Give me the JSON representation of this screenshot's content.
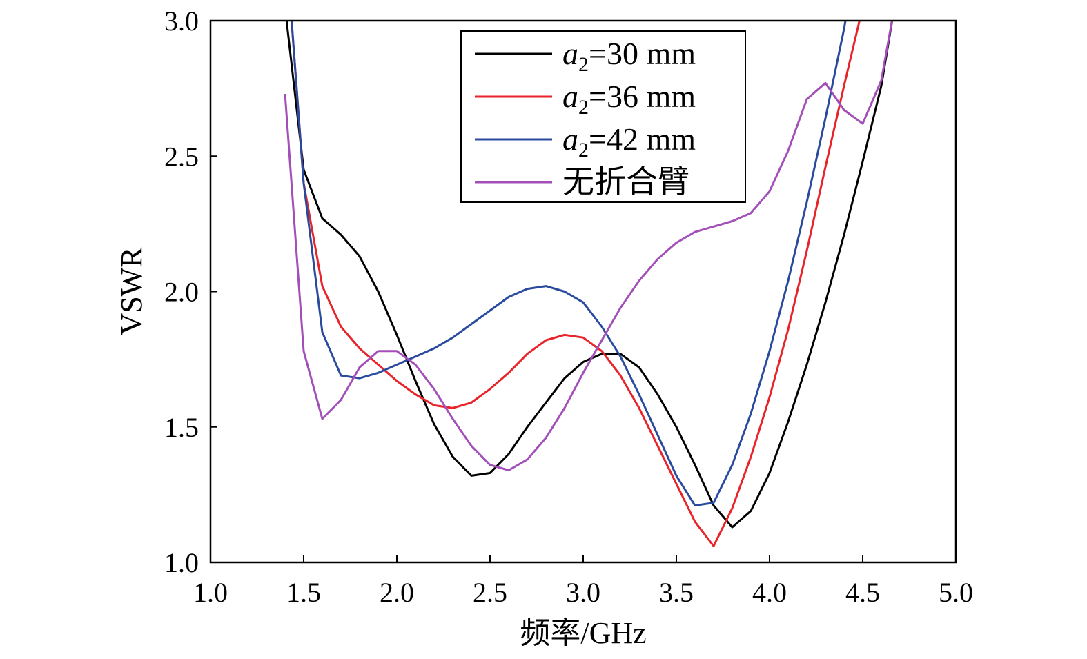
{
  "chart_data": {
    "type": "line",
    "title": "",
    "xlabel": "频率/GHz",
    "ylabel": "VSWR",
    "xlim": [
      1.0,
      5.0
    ],
    "ylim": [
      1.0,
      3.0
    ],
    "x_ticks": [
      1.0,
      1.5,
      2.0,
      2.5,
      3.0,
      3.5,
      4.0,
      4.5,
      5.0
    ],
    "y_ticks": [
      1.0,
      1.5,
      2.0,
      2.5,
      3.0
    ],
    "x_tick_labels": [
      "1.0",
      "1.5",
      "2.0",
      "2.5",
      "3.0",
      "3.5",
      "4.0",
      "4.5",
      "5.0"
    ],
    "y_tick_labels": [
      "1.0",
      "1.5",
      "2.0",
      "2.5",
      "3.0"
    ],
    "grid": false,
    "legend_position": "top-right",
    "series": [
      {
        "name": "a2=30 mm",
        "legend_var": "a",
        "legend_sub": "2",
        "legend_rest": "=30 mm",
        "color": "#000000",
        "points": [
          [
            1.4,
            3.05
          ],
          [
            1.5,
            2.45
          ],
          [
            1.6,
            2.27
          ],
          [
            1.7,
            2.21
          ],
          [
            1.8,
            2.13
          ],
          [
            1.9,
            2.0
          ],
          [
            2.0,
            1.84
          ],
          [
            2.1,
            1.67
          ],
          [
            2.2,
            1.51
          ],
          [
            2.3,
            1.39
          ],
          [
            2.4,
            1.32
          ],
          [
            2.5,
            1.33
          ],
          [
            2.6,
            1.4
          ],
          [
            2.7,
            1.5
          ],
          [
            2.8,
            1.59
          ],
          [
            2.9,
            1.68
          ],
          [
            3.0,
            1.74
          ],
          [
            3.1,
            1.77
          ],
          [
            3.2,
            1.77
          ],
          [
            3.3,
            1.72
          ],
          [
            3.4,
            1.62
          ],
          [
            3.5,
            1.5
          ],
          [
            3.6,
            1.36
          ],
          [
            3.7,
            1.21
          ],
          [
            3.8,
            1.13
          ],
          [
            3.9,
            1.19
          ],
          [
            4.0,
            1.33
          ],
          [
            4.1,
            1.52
          ],
          [
            4.2,
            1.73
          ],
          [
            4.3,
            1.96
          ],
          [
            4.4,
            2.21
          ],
          [
            4.5,
            2.48
          ],
          [
            4.6,
            2.76
          ],
          [
            4.67,
            3.05
          ]
        ]
      },
      {
        "name": "a2=36 mm",
        "legend_var": "a",
        "legend_sub": "2",
        "legend_rest": "=36 mm",
        "color": "#e8232a",
        "points": [
          [
            1.43,
            3.05
          ],
          [
            1.5,
            2.4
          ],
          [
            1.6,
            2.02
          ],
          [
            1.7,
            1.87
          ],
          [
            1.8,
            1.79
          ],
          [
            1.9,
            1.73
          ],
          [
            2.0,
            1.67
          ],
          [
            2.1,
            1.62
          ],
          [
            2.2,
            1.58
          ],
          [
            2.3,
            1.57
          ],
          [
            2.4,
            1.59
          ],
          [
            2.5,
            1.64
          ],
          [
            2.6,
            1.7
          ],
          [
            2.7,
            1.77
          ],
          [
            2.8,
            1.82
          ],
          [
            2.9,
            1.84
          ],
          [
            3.0,
            1.83
          ],
          [
            3.1,
            1.78
          ],
          [
            3.2,
            1.69
          ],
          [
            3.3,
            1.57
          ],
          [
            3.4,
            1.43
          ],
          [
            3.5,
            1.29
          ],
          [
            3.6,
            1.15
          ],
          [
            3.7,
            1.06
          ],
          [
            3.8,
            1.2
          ],
          [
            3.9,
            1.39
          ],
          [
            4.0,
            1.61
          ],
          [
            4.1,
            1.86
          ],
          [
            4.2,
            2.15
          ],
          [
            4.3,
            2.46
          ],
          [
            4.4,
            2.76
          ],
          [
            4.5,
            3.05
          ]
        ]
      },
      {
        "name": "a2=42 mm",
        "legend_var": "a",
        "legend_sub": "2",
        "legend_rest": "=42 mm",
        "color": "#2a4a9e",
        "points": [
          [
            1.43,
            3.05
          ],
          [
            1.5,
            2.4
          ],
          [
            1.6,
            1.85
          ],
          [
            1.7,
            1.69
          ],
          [
            1.8,
            1.68
          ],
          [
            1.9,
            1.7
          ],
          [
            2.0,
            1.73
          ],
          [
            2.1,
            1.76
          ],
          [
            2.2,
            1.79
          ],
          [
            2.3,
            1.83
          ],
          [
            2.4,
            1.88
          ],
          [
            2.5,
            1.93
          ],
          [
            2.6,
            1.98
          ],
          [
            2.7,
            2.01
          ],
          [
            2.8,
            2.02
          ],
          [
            2.9,
            2.0
          ],
          [
            3.0,
            1.96
          ],
          [
            3.1,
            1.87
          ],
          [
            3.2,
            1.76
          ],
          [
            3.3,
            1.62
          ],
          [
            3.4,
            1.47
          ],
          [
            3.5,
            1.32
          ],
          [
            3.6,
            1.21
          ],
          [
            3.7,
            1.22
          ],
          [
            3.8,
            1.36
          ],
          [
            3.9,
            1.55
          ],
          [
            4.0,
            1.78
          ],
          [
            4.1,
            2.04
          ],
          [
            4.2,
            2.33
          ],
          [
            4.3,
            2.64
          ],
          [
            4.4,
            2.97
          ],
          [
            4.42,
            3.05
          ]
        ]
      },
      {
        "name": "无折合臂",
        "legend_var": "",
        "legend_sub": "",
        "legend_rest": "无折合臂",
        "color": "#a24fb8",
        "points": [
          [
            1.4,
            2.73
          ],
          [
            1.5,
            1.78
          ],
          [
            1.6,
            1.53
          ],
          [
            1.7,
            1.6
          ],
          [
            1.8,
            1.72
          ],
          [
            1.9,
            1.78
          ],
          [
            2.0,
            1.78
          ],
          [
            2.1,
            1.73
          ],
          [
            2.2,
            1.64
          ],
          [
            2.3,
            1.53
          ],
          [
            2.4,
            1.43
          ],
          [
            2.5,
            1.36
          ],
          [
            2.6,
            1.34
          ],
          [
            2.7,
            1.38
          ],
          [
            2.8,
            1.46
          ],
          [
            2.9,
            1.57
          ],
          [
            3.0,
            1.7
          ],
          [
            3.1,
            1.82
          ],
          [
            3.2,
            1.94
          ],
          [
            3.3,
            2.04
          ],
          [
            3.4,
            2.12
          ],
          [
            3.5,
            2.18
          ],
          [
            3.6,
            2.22
          ],
          [
            3.7,
            2.24
          ],
          [
            3.8,
            2.26
          ],
          [
            3.9,
            2.29
          ],
          [
            4.0,
            2.37
          ],
          [
            4.1,
            2.52
          ],
          [
            4.2,
            2.71
          ],
          [
            4.3,
            2.77
          ],
          [
            4.4,
            2.67
          ],
          [
            4.5,
            2.62
          ],
          [
            4.6,
            2.78
          ],
          [
            4.67,
            3.05
          ]
        ]
      }
    ]
  }
}
